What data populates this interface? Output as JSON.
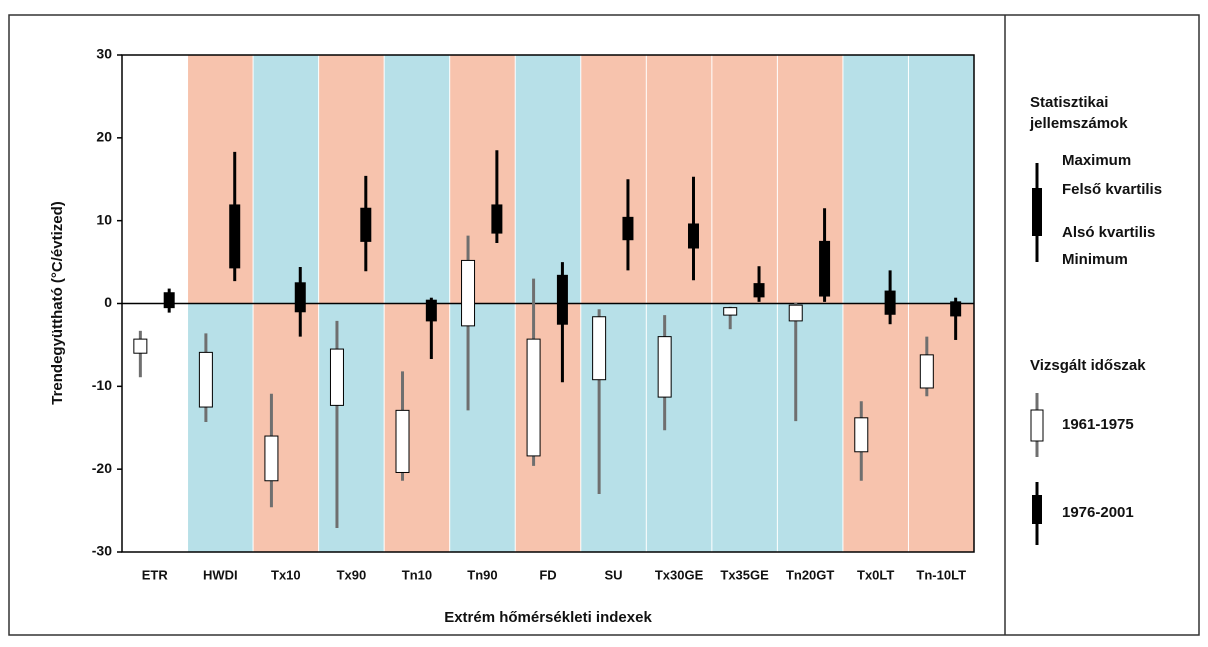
{
  "chart_data": {
    "type": "box",
    "y_label": "Trendegyüttható (°C/évtized)",
    "x_label": "Extrém hőmérsékleti indexek",
    "categories": [
      "ETR",
      "HWDI",
      "Tx10",
      "Tx90",
      "Tn10",
      "Tn90",
      "FD",
      "SU",
      "Tx30GE",
      "Tx35GE",
      "Tn20GT",
      "Tx0LT",
      "Tn-10LT"
    ],
    "band_colors": [
      [
        "#ffffff",
        "#ffffff"
      ],
      [
        "#f7c3ad",
        "#b7e0e8"
      ],
      [
        "#b7e0e8",
        "#f7c3ad"
      ],
      [
        "#f7c3ad",
        "#b7e0e8"
      ],
      [
        "#b7e0e8",
        "#f7c3ad"
      ],
      [
        "#f7c3ad",
        "#b7e0e8"
      ],
      [
        "#b7e0e8",
        "#f7c3ad"
      ],
      [
        "#f7c3ad",
        "#b7e0e8"
      ],
      [
        "#f7c3ad",
        "#b7e0e8"
      ],
      [
        "#f7c3ad",
        "#b7e0e8"
      ],
      [
        "#f7c3ad",
        "#b7e0e8"
      ],
      [
        "#b7e0e8",
        "#f7c3ad"
      ],
      [
        "#b7e0e8",
        "#f7c3ad"
      ]
    ],
    "series": [
      {
        "name": "1961-1975",
        "color": "#ffffff",
        "whisker_color": "#6f6f6f",
        "min": [
          -8.9,
          -14.3,
          -24.6,
          -27.1,
          -21.4,
          -12.9,
          -19.6,
          -23.0,
          -15.3,
          -3.1,
          -14.2,
          -21.4,
          -11.2
        ],
        "q1": [
          -6.0,
          -12.5,
          -21.4,
          -12.3,
          -20.4,
          -2.7,
          -18.4,
          -9.2,
          -11.3,
          -1.4,
          -2.1,
          -17.9,
          -10.2
        ],
        "q3": [
          -4.3,
          -5.9,
          -16.0,
          -5.5,
          -12.9,
          5.2,
          -4.3,
          -1.6,
          -4.0,
          -0.5,
          -0.2,
          -13.8,
          -6.2
        ],
        "max": [
          -3.3,
          -3.6,
          -10.9,
          -2.1,
          -8.2,
          8.2,
          3.0,
          -0.7,
          -1.4,
          -0.4,
          0.1,
          -11.8,
          -4.0
        ]
      },
      {
        "name": "1976-2001",
        "color": "#000000",
        "whisker_color": "#000000",
        "min": [
          -1.1,
          2.7,
          -4.0,
          3.9,
          -6.7,
          7.3,
          -9.5,
          4.0,
          2.8,
          0.2,
          0.2,
          -2.5,
          -4.4
        ],
        "q1": [
          -0.5,
          4.3,
          -1.0,
          7.5,
          -2.1,
          8.5,
          -2.5,
          7.7,
          6.7,
          0.8,
          0.9,
          -1.3,
          -1.5
        ],
        "q3": [
          1.3,
          11.9,
          2.5,
          11.5,
          0.4,
          11.9,
          3.4,
          10.4,
          9.6,
          2.4,
          7.5,
          1.5,
          0.2
        ],
        "max": [
          1.8,
          18.3,
          4.4,
          15.4,
          0.7,
          18.5,
          5.0,
          15.0,
          15.3,
          4.5,
          11.5,
          4.0,
          0.7
        ]
      }
    ],
    "ylim": [
      -30,
      30
    ],
    "yticks": [
      -30,
      -20,
      -10,
      0,
      10,
      20,
      30
    ],
    "legend_stats_title": [
      "Statisztikai",
      "jellemszámok"
    ],
    "legend_stats": [
      "Maximum",
      "Felső kvartilis",
      "Alsó kvartilis",
      "Minimum"
    ],
    "legend_period_title": "Vizsgált időszak"
  }
}
